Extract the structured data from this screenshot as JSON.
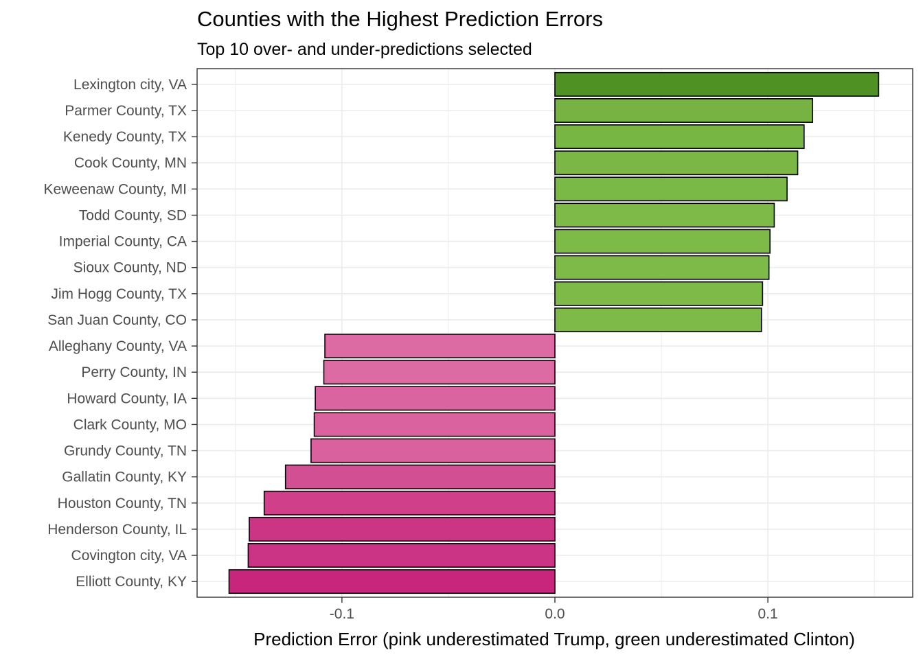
{
  "chart_data": {
    "type": "bar",
    "orientation": "horizontal",
    "title": "Counties with the Highest Prediction Errors",
    "subtitle": "Top 10 over- and under-predictions selected",
    "xlabel": "Prediction Error (pink underestimated Trump, green underestimated Clinton)",
    "ylabel": "",
    "xlim": [
      -0.168,
      0.168
    ],
    "x_ticks": [
      -0.1,
      0.0,
      0.1
    ],
    "x_tick_labels": [
      "-0.1",
      "0.0",
      "0.1"
    ],
    "grid": true,
    "legend": "none",
    "categories": [
      "Lexington city, VA",
      "Parmer County, TX",
      "Kenedy County, TX",
      "Cook County, MN",
      "Keweenaw County, MI",
      "Todd County, SD",
      "Imperial County, CA",
      "Sioux County, ND",
      "Jim Hogg County, TX",
      "San Juan County, CO",
      "Alleghany County, VA",
      "Perry County, IN",
      "Howard County, IA",
      "Clark County, MO",
      "Grundy County, TN",
      "Gallatin County, KY",
      "Houston County, TN",
      "Henderson County, IL",
      "Covington city, VA",
      "Elliott County, KY"
    ],
    "values": [
      0.152,
      0.121,
      0.117,
      0.114,
      0.109,
      0.103,
      0.101,
      0.1005,
      0.0975,
      0.097,
      -0.108,
      -0.1085,
      -0.1125,
      -0.113,
      -0.1145,
      -0.1265,
      -0.1365,
      -0.1435,
      -0.144,
      -0.153
    ],
    "colors": {
      "green_dark": "#4f9122",
      "green_light": "#7dba48",
      "pink_light": "#dc6ba3",
      "pink_dark": "#c7267c",
      "bar_outline": "#000000",
      "grid": "#ebebeb",
      "panel_border": "#333333"
    }
  }
}
